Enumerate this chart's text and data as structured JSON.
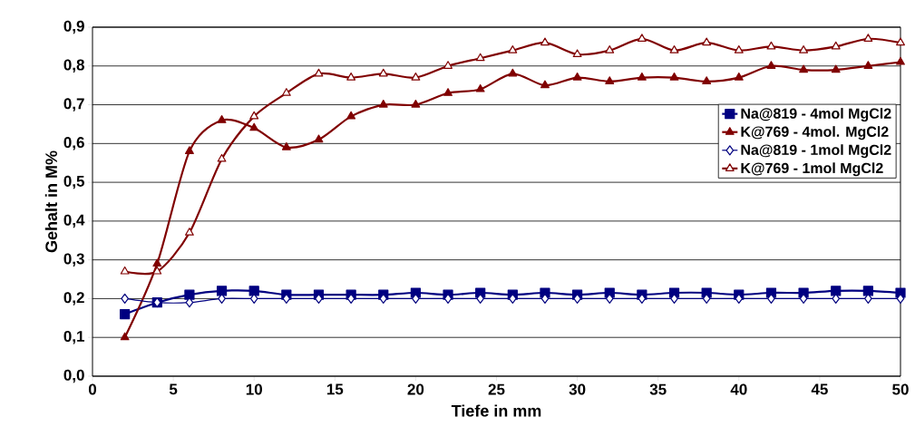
{
  "chart_data": {
    "type": "line",
    "xlabel": "Tiefe in mm",
    "ylabel": "Gehalt in M%",
    "x": [
      2,
      4,
      6,
      8,
      10,
      12,
      14,
      16,
      18,
      20,
      22,
      24,
      26,
      28,
      30,
      32,
      34,
      36,
      38,
      40,
      42,
      44,
      46,
      48,
      50
    ],
    "series": [
      {
        "name": "Na@819 - 4mol MgCl2",
        "color": "#000080",
        "marker": "square",
        "values": [
          0.16,
          0.19,
          0.21,
          0.22,
          0.22,
          0.21,
          0.21,
          0.21,
          0.21,
          0.215,
          0.21,
          0.215,
          0.21,
          0.215,
          0.21,
          0.215,
          0.21,
          0.215,
          0.215,
          0.21,
          0.215,
          0.215,
          0.22,
          0.22,
          0.215
        ]
      },
      {
        "name": "K@769 - 4mol. MgCl2",
        "color": "#800000",
        "marker": "triangle",
        "values": [
          0.1,
          0.29,
          0.58,
          0.66,
          0.64,
          0.59,
          0.61,
          0.67,
          0.7,
          0.7,
          0.73,
          0.74,
          0.78,
          0.75,
          0.77,
          0.76,
          0.77,
          0.77,
          0.76,
          0.77,
          0.8,
          0.79,
          0.79,
          0.8,
          0.81
        ]
      },
      {
        "name": "Na@819 - 1mol MgCl2",
        "color": "#000080",
        "marker": "diamond",
        "values": [
          0.2,
          0.19,
          0.19,
          0.2,
          0.2,
          0.2,
          0.2,
          0.2,
          0.2,
          0.2,
          0.2,
          0.2,
          0.2,
          0.2,
          0.2,
          0.2,
          0.2,
          0.2,
          0.2,
          0.2,
          0.2,
          0.2,
          0.2,
          0.2,
          0.2
        ]
      },
      {
        "name": "K@769 - 1mol MgCl2",
        "color": "#800000",
        "marker": "triangle",
        "values": [
          0.27,
          0.27,
          0.37,
          0.56,
          0.67,
          0.73,
          0.78,
          0.77,
          0.78,
          0.77,
          0.8,
          0.82,
          0.84,
          0.86,
          0.83,
          0.84,
          0.87,
          0.84,
          0.86,
          0.84,
          0.85,
          0.84,
          0.85,
          0.87,
          0.86
        ]
      }
    ],
    "xlim": [
      0,
      50
    ],
    "xticks": [
      0,
      5,
      10,
      15,
      20,
      25,
      30,
      35,
      40,
      45,
      50
    ],
    "ylim": [
      0,
      0.9
    ],
    "yticks": [
      {
        "value": 0,
        "label": "0,0"
      },
      {
        "value": 0.1,
        "label": "0,1"
      },
      {
        "value": 0.2,
        "label": "0,2"
      },
      {
        "value": 0.3,
        "label": "0,3"
      },
      {
        "value": 0.4,
        "label": "0,4"
      },
      {
        "value": 0.5,
        "label": "0,5"
      },
      {
        "value": 0.6,
        "label": "0,6"
      },
      {
        "value": 0.7,
        "label": "0,7"
      },
      {
        "value": 0.8,
        "label": "0,8"
      },
      {
        "value": 0.9,
        "label": "0,9"
      }
    ],
    "grid": "y",
    "legend": "right"
  }
}
